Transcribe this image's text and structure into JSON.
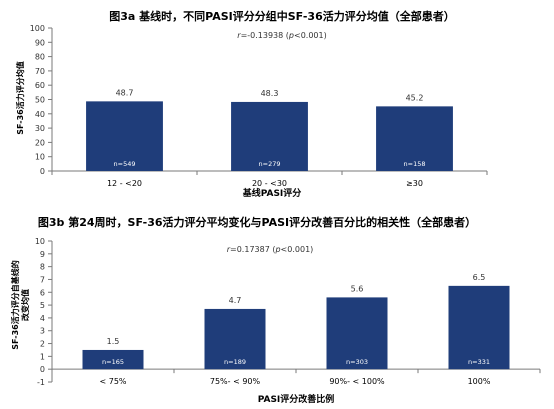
{
  "chart_data": [
    {
      "type": "bar",
      "title": "图3a 基线时，不同PASI评分分组中SF-36活力评分均值（全部患者）",
      "annotation_prefix": "r",
      "annotation_rest": "=-0.13938 (",
      "annotation_p": "p",
      "annotation_tail": "<0.001)",
      "xlabel": "基线PASI评分",
      "ylabel": "SF-36活力评分均值",
      "ylim": [
        0,
        100
      ],
      "yticks": [
        0,
        10,
        20,
        30,
        40,
        50,
        60,
        70,
        80,
        90,
        100
      ],
      "categories": [
        "12 - <20",
        "20 - <30",
        "≥30"
      ],
      "values": [
        48.7,
        48.3,
        45.2
      ],
      "value_labels": [
        "48.7",
        "48.3",
        "45.2"
      ],
      "n_labels": [
        "n=549",
        "n=279",
        "n=158"
      ],
      "bar_color": "#1f3d7a",
      "grid": false
    },
    {
      "type": "bar",
      "title": "图3b 第24周时，SF-36活力评分平均变化与PASI评分改善百分比的相关性（全部患者）",
      "annotation_prefix": "r",
      "annotation_rest": "=0.17387 (",
      "annotation_p": "p",
      "annotation_tail": "<0.001)",
      "xlabel": "PASI评分改善比例",
      "ylabel_lines": [
        "SF-36活力评分自基线的",
        "改变均值"
      ],
      "ylim": [
        -1,
        10
      ],
      "yticks": [
        -1,
        0,
        1,
        2,
        3,
        4,
        5,
        6,
        7,
        8,
        9,
        10
      ],
      "categories": [
        "< 75%",
        "75%- < 90%",
        "90%- < 100%",
        "100%"
      ],
      "values": [
        1.5,
        4.7,
        5.6,
        6.5
      ],
      "value_labels": [
        "1.5",
        "4.7",
        "5.6",
        "6.5"
      ],
      "n_labels": [
        "n=165",
        "n=189",
        "n=303",
        "n=331"
      ],
      "bar_color": "#1f3d7a",
      "grid": false
    }
  ]
}
